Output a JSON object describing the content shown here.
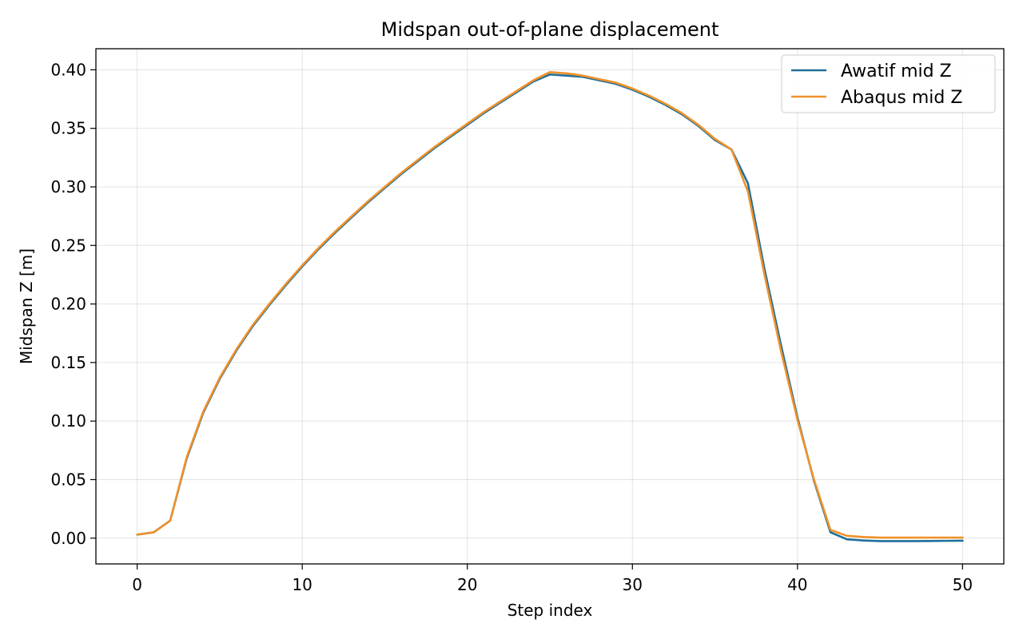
{
  "chart_data": {
    "type": "line",
    "title": "Midspan out-of-plane displacement",
    "xlabel": "Step index",
    "ylabel": "Midspan Z [m]",
    "xlim": [
      -2.5,
      52.5
    ],
    "ylim": [
      -0.022,
      0.418
    ],
    "x_ticks": [
      0,
      10,
      20,
      30,
      40,
      50
    ],
    "y_ticks": [
      0.0,
      0.05,
      0.1,
      0.15,
      0.2,
      0.25,
      0.3,
      0.35,
      0.4
    ],
    "x_tick_labels": [
      "0",
      "10",
      "20",
      "30",
      "40",
      "50"
    ],
    "y_tick_labels": [
      "0.00",
      "0.05",
      "0.10",
      "0.15",
      "0.20",
      "0.25",
      "0.30",
      "0.35",
      "0.40"
    ],
    "grid": true,
    "legend_position": "top-right",
    "x": [
      0,
      1,
      2,
      3,
      4,
      5,
      6,
      7,
      8,
      9,
      10,
      11,
      12,
      13,
      14,
      15,
      16,
      17,
      18,
      19,
      20,
      21,
      22,
      23,
      24,
      25,
      26,
      27,
      28,
      29,
      30,
      31,
      32,
      33,
      34,
      35,
      36,
      37,
      38,
      39,
      40,
      41,
      42,
      43,
      44,
      45,
      46,
      47,
      48,
      49,
      50
    ],
    "series": [
      {
        "name": "Awatif mid Z",
        "color": "#1f6f99",
        "values": [
          0.003,
          0.005,
          0.015,
          0.068,
          0.107,
          0.136,
          0.16,
          0.181,
          0.199,
          0.216,
          0.232,
          0.247,
          0.261,
          0.274,
          0.287,
          0.299,
          0.311,
          0.322,
          0.333,
          0.343,
          0.353,
          0.363,
          0.372,
          0.381,
          0.39,
          0.396,
          0.395,
          0.394,
          0.391,
          0.388,
          0.383,
          0.377,
          0.37,
          0.362,
          0.352,
          0.34,
          0.332,
          0.303,
          0.23,
          0.165,
          0.103,
          0.049,
          0.005,
          -0.001,
          -0.002,
          -0.0025,
          -0.0025,
          -0.0025,
          -0.0024,
          -0.0023,
          -0.0022
        ]
      },
      {
        "name": "Abaqus mid Z",
        "color": "#f0912a",
        "values": [
          0.003,
          0.005,
          0.015,
          0.069,
          0.108,
          0.137,
          0.161,
          0.182,
          0.2,
          0.217,
          0.233,
          0.248,
          0.262,
          0.275,
          0.288,
          0.3,
          0.312,
          0.323,
          0.334,
          0.344,
          0.354,
          0.364,
          0.373,
          0.382,
          0.391,
          0.398,
          0.397,
          0.395,
          0.392,
          0.389,
          0.384,
          0.378,
          0.371,
          0.363,
          0.353,
          0.341,
          0.332,
          0.296,
          0.225,
          0.16,
          0.101,
          0.05,
          0.007,
          0.002,
          0.001,
          0.0005,
          0.0005,
          0.0005,
          0.0005,
          0.0005,
          0.0005
        ]
      }
    ]
  }
}
